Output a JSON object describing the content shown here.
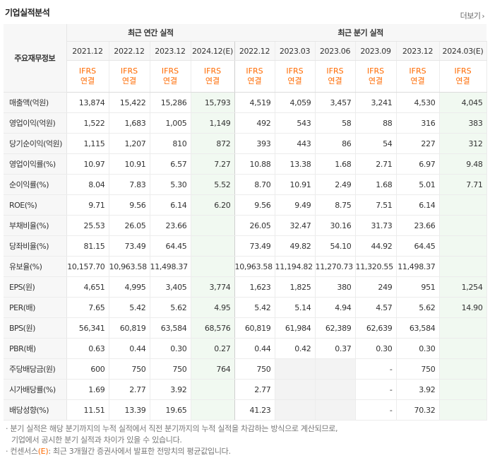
{
  "section_title": "기업실적분석",
  "more_label": "더보기",
  "header": {
    "label_col": "주요재무정보",
    "annual_group": "최근 연간 실적",
    "quarter_group": "최근 분기 실적",
    "periods": [
      "2021.12",
      "2022.12",
      "2023.12",
      "2024.12(E)",
      "2022.12",
      "2023.03",
      "2023.06",
      "2023.09",
      "2023.12",
      "2024.03(E)"
    ],
    "ifrs_line1": "IFRS",
    "ifrs_line2": "연결"
  },
  "rows": [
    {
      "label": "매출액(억원)",
      "values": [
        "13,874",
        "15,422",
        "15,286",
        "15,793",
        "4,519",
        "4,059",
        "3,457",
        "3,241",
        "4,530",
        "4,045"
      ]
    },
    {
      "label": "영업이익(억원)",
      "values": [
        "1,522",
        "1,683",
        "1,005",
        "1,149",
        "492",
        "543",
        "58",
        "88",
        "316",
        "383"
      ]
    },
    {
      "label": "당기순이익(억원)",
      "values": [
        "1,115",
        "1,207",
        "810",
        "872",
        "393",
        "443",
        "86",
        "54",
        "227",
        "312"
      ]
    },
    {
      "label": "영업이익률(%)",
      "values": [
        "10.97",
        "10.91",
        "6.57",
        "7.27",
        "10.88",
        "13.38",
        "1.68",
        "2.71",
        "6.97",
        "9.48"
      ]
    },
    {
      "label": "순이익률(%)",
      "values": [
        "8.04",
        "7.83",
        "5.30",
        "5.52",
        "8.70",
        "10.91",
        "2.49",
        "1.68",
        "5.01",
        "7.71"
      ]
    },
    {
      "label": "ROE(%)",
      "values": [
        "9.71",
        "9.56",
        "6.14",
        "6.20",
        "9.56",
        "9.49",
        "8.75",
        "7.51",
        "6.14",
        ""
      ]
    },
    {
      "label": "부채비율(%)",
      "values": [
        "25.53",
        "26.05",
        "23.66",
        "",
        "26.05",
        "32.47",
        "30.16",
        "31.73",
        "23.66",
        ""
      ]
    },
    {
      "label": "당좌비율(%)",
      "values": [
        "81.15",
        "73.49",
        "64.45",
        "",
        "73.49",
        "49.82",
        "54.10",
        "44.92",
        "64.45",
        ""
      ]
    },
    {
      "label": "유보율(%)",
      "values": [
        "10,157.70",
        "10,963.58",
        "11,498.37",
        "",
        "10,963.58",
        "11,194.82",
        "11,270.73",
        "11,320.55",
        "11,498.37",
        ""
      ]
    },
    {
      "label": "EPS(원)",
      "values": [
        "4,651",
        "4,995",
        "3,405",
        "3,774",
        "1,623",
        "1,825",
        "380",
        "249",
        "951",
        "1,254"
      ]
    },
    {
      "label": "PER(배)",
      "values": [
        "7.65",
        "5.42",
        "5.62",
        "4.95",
        "5.42",
        "5.14",
        "4.94",
        "4.57",
        "5.62",
        "14.90"
      ]
    },
    {
      "label": "BPS(원)",
      "values": [
        "56,341",
        "60,819",
        "63,584",
        "68,576",
        "60,819",
        "61,984",
        "62,389",
        "62,639",
        "63,584",
        ""
      ]
    },
    {
      "label": "PBR(배)",
      "values": [
        "0.63",
        "0.44",
        "0.30",
        "0.27",
        "0.44",
        "0.42",
        "0.37",
        "0.30",
        "0.30",
        ""
      ]
    },
    {
      "label": "주당배당금(원)",
      "values": [
        "600",
        "750",
        "750",
        "764",
        "750",
        "",
        "",
        "-",
        "750",
        ""
      ]
    },
    {
      "label": "시가배당률(%)",
      "values": [
        "1.69",
        "2.77",
        "3.92",
        "",
        "2.77",
        "",
        "",
        "-",
        "3.92",
        ""
      ]
    },
    {
      "label": "배당성향(%)",
      "values": [
        "11.51",
        "13.39",
        "19.65",
        "",
        "41.23",
        "",
        "",
        "-",
        "70.32",
        ""
      ]
    }
  ],
  "notes": {
    "line1": "분기 실적은 해당 분기까지의 누적 실적에서 직전 분기까지의 누적 실적을 차감하는 방식으로 계산되므로,",
    "line2": "기업에서 공시한 분기 실적과 차이가 있을 수 있습니다.",
    "line3_prefix": "컨센서스",
    "line3_mark": "(E)",
    "line3_suffix": ": 최근 3개월간 증권사에서 발표한 전망치의 평균값입니다."
  }
}
